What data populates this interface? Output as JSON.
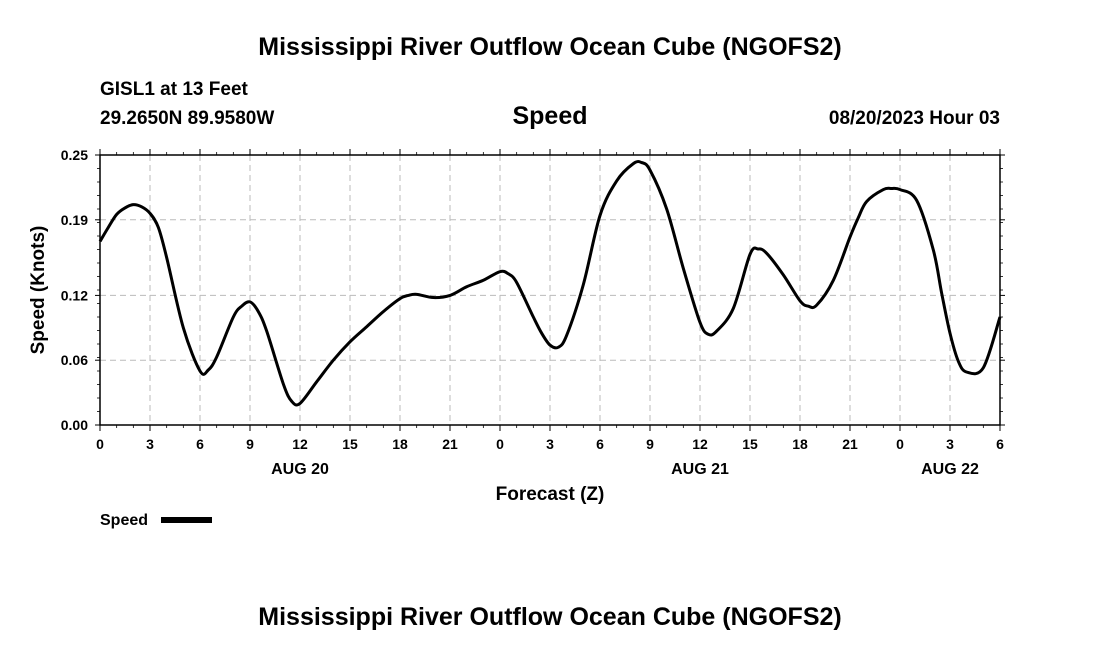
{
  "header": {
    "title": "Mississippi River Outflow Ocean Cube (NGOFS2)",
    "station": "GISL1 at 13 Feet",
    "coords": "29.2650N  89.9580W",
    "variable": "Speed",
    "datetime": "08/20/2023 Hour 03",
    "footer_title": "Mississippi River Outflow Ocean Cube (NGOFS2)"
  },
  "legend": {
    "label": "Speed"
  },
  "chart_data": {
    "type": "line",
    "title": "Speed",
    "xlabel": "Forecast (Z)",
    "ylabel": "Speed (Knots)",
    "xlim": [
      0,
      54
    ],
    "ylim": [
      0.0,
      0.25
    ],
    "grid": true,
    "legend_position": "bottom-left",
    "y_ticks": [
      0.0,
      0.06,
      0.12,
      0.19,
      0.25
    ],
    "y_tick_labels": [
      "0.00",
      "0.06",
      "0.12",
      "0.19",
      "0.25"
    ],
    "x_ticks": [
      0,
      3,
      6,
      9,
      12,
      15,
      18,
      21,
      24,
      27,
      30,
      33,
      36,
      39,
      42,
      45,
      48,
      51,
      54
    ],
    "x_tick_labels": [
      "0",
      "3",
      "6",
      "9",
      "12",
      "15",
      "18",
      "21",
      "0",
      "3",
      "6",
      "9",
      "12",
      "15",
      "18",
      "21",
      "0",
      "3",
      "6"
    ],
    "date_labels": [
      {
        "x": 12,
        "label": "AUG 20"
      },
      {
        "x": 36,
        "label": "AUG 21"
      },
      {
        "x": 51,
        "label": "AUG 22"
      }
    ],
    "series": [
      {
        "name": "Speed",
        "color": "#000000",
        "x": [
          0,
          0.5,
          1,
          1.5,
          2,
          2.5,
          3,
          3.5,
          4,
          5,
          6,
          6.5,
          7,
          8,
          8.5,
          9,
          9.5,
          10,
          11,
          11.5,
          12,
          13,
          14,
          15,
          16,
          17,
          18,
          18.5,
          19,
          20,
          21,
          22,
          23,
          24,
          24.5,
          25,
          26,
          26.5,
          27,
          27.5,
          28,
          29,
          30,
          31,
          32,
          32.5,
          33,
          34,
          35,
          36,
          36.5,
          37,
          38,
          39,
          39.5,
          40,
          41,
          42,
          42.5,
          43,
          44,
          45,
          45.5,
          46,
          47,
          47.5,
          48,
          49,
          50,
          50.5,
          51,
          51.5,
          52,
          53,
          54
        ],
        "values": [
          0.17,
          0.183,
          0.195,
          0.201,
          0.204,
          0.202,
          0.196,
          0.183,
          0.155,
          0.09,
          0.05,
          0.051,
          0.063,
          0.1,
          0.11,
          0.114,
          0.105,
          0.087,
          0.038,
          0.022,
          0.02,
          0.04,
          0.06,
          0.077,
          0.091,
          0.105,
          0.117,
          0.12,
          0.121,
          0.118,
          0.12,
          0.128,
          0.134,
          0.142,
          0.14,
          0.132,
          0.1,
          0.085,
          0.074,
          0.072,
          0.083,
          0.13,
          0.194,
          0.226,
          0.242,
          0.243,
          0.236,
          0.2,
          0.145,
          0.095,
          0.084,
          0.087,
          0.108,
          0.158,
          0.163,
          0.159,
          0.139,
          0.115,
          0.11,
          0.111,
          0.134,
          0.174,
          0.192,
          0.207,
          0.218,
          0.219,
          0.218,
          0.208,
          0.162,
          0.122,
          0.085,
          0.059,
          0.049,
          0.053,
          0.1
        ]
      }
    ]
  }
}
